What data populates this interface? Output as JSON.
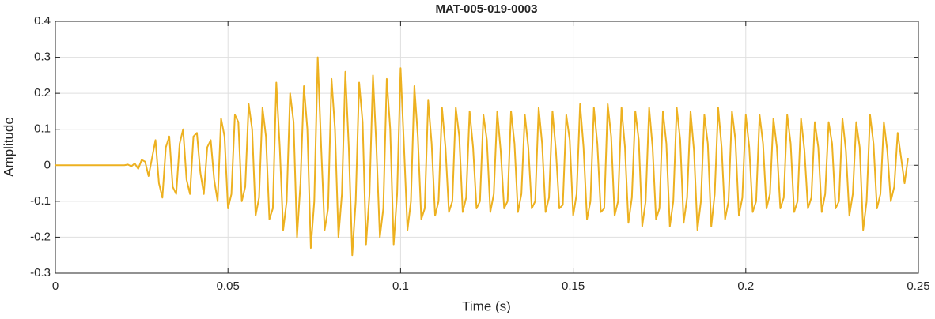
{
  "chart_data": {
    "type": "line",
    "title": "MAT-005-019-0003",
    "x_label": "Time (s)",
    "y_label": "Amplitude",
    "xlim": [
      0,
      0.25
    ],
    "xticks": [
      0,
      0.05,
      0.1,
      0.15,
      0.2,
      0.25
    ],
    "ylim": [
      -0.3,
      0.4
    ],
    "yticks": [
      -0.3,
      -0.2,
      -0.1,
      0,
      0.1,
      0.2,
      0.3,
      0.4
    ],
    "grid": true,
    "series": [
      {
        "name": "Amplitude",
        "color": "#EDB120",
        "x": [
          0,
          0.02,
          0.021,
          0.022,
          0.023,
          0.024,
          0.025,
          0.026,
          0.027,
          0.028,
          0.029,
          0.03,
          0.031,
          0.032,
          0.033,
          0.034,
          0.035,
          0.036,
          0.037,
          0.038,
          0.039,
          0.04,
          0.041,
          0.042,
          0.043,
          0.044,
          0.045,
          0.046,
          0.047,
          0.048,
          0.049,
          0.05,
          0.051,
          0.052,
          0.053,
          0.054,
          0.055,
          0.056,
          0.057,
          0.058,
          0.059,
          0.06,
          0.061,
          0.062,
          0.063,
          0.064,
          0.065,
          0.066,
          0.067,
          0.068,
          0.069,
          0.07,
          0.071,
          0.072,
          0.073,
          0.074,
          0.075,
          0.076,
          0.077,
          0.078,
          0.079,
          0.08,
          0.081,
          0.082,
          0.083,
          0.084,
          0.085,
          0.086,
          0.087,
          0.088,
          0.089,
          0.09,
          0.091,
          0.092,
          0.093,
          0.094,
          0.095,
          0.096,
          0.097,
          0.098,
          0.099,
          0.1,
          0.101,
          0.102,
          0.103,
          0.104,
          0.105,
          0.106,
          0.107,
          0.108,
          0.109,
          0.11,
          0.111,
          0.112,
          0.113,
          0.114,
          0.115,
          0.116,
          0.117,
          0.118,
          0.119,
          0.12,
          0.121,
          0.122,
          0.123,
          0.124,
          0.125,
          0.126,
          0.127,
          0.128,
          0.129,
          0.13,
          0.131,
          0.132,
          0.133,
          0.134,
          0.135,
          0.136,
          0.137,
          0.138,
          0.139,
          0.14,
          0.141,
          0.142,
          0.143,
          0.144,
          0.145,
          0.146,
          0.147,
          0.148,
          0.149,
          0.15,
          0.151,
          0.152,
          0.153,
          0.154,
          0.155,
          0.156,
          0.157,
          0.158,
          0.159,
          0.16,
          0.161,
          0.162,
          0.163,
          0.164,
          0.165,
          0.166,
          0.167,
          0.168,
          0.169,
          0.17,
          0.171,
          0.172,
          0.173,
          0.174,
          0.175,
          0.176,
          0.177,
          0.178,
          0.179,
          0.18,
          0.181,
          0.182,
          0.183,
          0.184,
          0.185,
          0.186,
          0.187,
          0.188,
          0.189,
          0.19,
          0.191,
          0.192,
          0.193,
          0.194,
          0.195,
          0.196,
          0.197,
          0.198,
          0.199,
          0.2,
          0.201,
          0.202,
          0.203,
          0.204,
          0.205,
          0.206,
          0.207,
          0.208,
          0.209,
          0.21,
          0.211,
          0.212,
          0.213,
          0.214,
          0.215,
          0.216,
          0.217,
          0.218,
          0.219,
          0.22,
          0.221,
          0.222,
          0.223,
          0.224,
          0.225,
          0.226,
          0.227,
          0.228,
          0.229,
          0.23,
          0.231,
          0.232,
          0.233,
          0.234,
          0.235,
          0.236,
          0.237,
          0.238,
          0.239,
          0.24,
          0.241,
          0.242,
          0.243,
          0.244,
          0.245,
          0.246,
          0.247
        ],
        "values": [
          0,
          0,
          0.002,
          -0.003,
          0.005,
          -0.01,
          0.015,
          0.01,
          -0.03,
          0.02,
          0.07,
          -0.05,
          -0.09,
          0.05,
          0.08,
          -0.06,
          -0.08,
          0.06,
          0.1,
          -0.04,
          -0.08,
          0.08,
          0.09,
          -0.02,
          -0.08,
          0.05,
          0.07,
          -0.04,
          -0.1,
          0.13,
          0.08,
          -0.12,
          -0.08,
          0.14,
          0.12,
          -0.1,
          -0.06,
          0.17,
          0.1,
          -0.14,
          -0.09,
          0.16,
          0.08,
          -0.15,
          -0.12,
          0.23,
          0.05,
          -0.18,
          -0.1,
          0.2,
          0.12,
          -0.2,
          -0.05,
          0.22,
          0.1,
          -0.23,
          -0.1,
          0.3,
          0.05,
          -0.18,
          -0.12,
          0.24,
          0.1,
          -0.2,
          -0.08,
          0.26,
          0.05,
          -0.25,
          -0.1,
          0.23,
          0.12,
          -0.22,
          -0.08,
          0.25,
          0.05,
          -0.2,
          -0.12,
          0.24,
          0.1,
          -0.22,
          -0.08,
          0.27,
          0.05,
          -0.18,
          -0.1,
          0.22,
          0.08,
          -0.15,
          -0.12,
          0.18,
          0.06,
          -0.14,
          -0.1,
          0.16,
          0.05,
          -0.13,
          -0.1,
          0.16,
          0.08,
          -0.13,
          -0.09,
          0.15,
          0.05,
          -0.12,
          -0.1,
          0.14,
          0.07,
          -0.13,
          -0.08,
          0.15,
          0.04,
          -0.12,
          -0.1,
          0.15,
          0.06,
          -0.13,
          -0.08,
          0.14,
          0.05,
          -0.12,
          -0.1,
          0.16,
          0.06,
          -0.13,
          -0.09,
          0.15,
          0.04,
          -0.12,
          -0.11,
          0.14,
          0.07,
          -0.14,
          -0.08,
          0.17,
          0.05,
          -0.15,
          -0.1,
          0.16,
          0.06,
          -0.13,
          -0.12,
          0.17,
          0.08,
          -0.14,
          -0.1,
          0.16,
          0.05,
          -0.16,
          -0.09,
          0.15,
          0.07,
          -0.17,
          -0.1,
          0.16,
          0.05,
          -0.15,
          -0.12,
          0.15,
          0.06,
          -0.17,
          -0.1,
          0.16,
          0.07,
          -0.16,
          -0.09,
          0.15,
          0.04,
          -0.18,
          -0.1,
          0.14,
          0.06,
          -0.17,
          -0.08,
          0.16,
          0.05,
          -0.15,
          -0.1,
          0.15,
          0.07,
          -0.14,
          -0.09,
          0.14,
          0.05,
          -0.13,
          -0.1,
          0.14,
          0.06,
          -0.12,
          -0.08,
          0.13,
          0.05,
          -0.12,
          -0.09,
          0.14,
          0.06,
          -0.13,
          -0.1,
          0.13,
          0.04,
          -0.12,
          -0.09,
          0.12,
          0.05,
          -0.13,
          -0.08,
          0.12,
          0.06,
          -0.12,
          -0.1,
          0.13,
          0.04,
          -0.14,
          -0.08,
          0.12,
          0.05,
          -0.18,
          -0.1,
          0.14,
          0.06,
          -0.12,
          -0.08,
          0.12,
          0.04,
          -0.1,
          -0.06,
          0.09,
          0.02,
          -0.05,
          0.02
        ]
      }
    ]
  }
}
